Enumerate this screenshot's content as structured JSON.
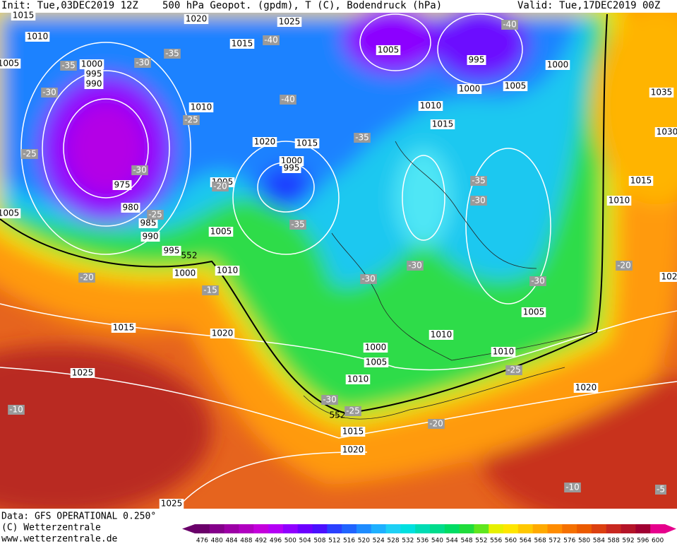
{
  "header": {
    "init": "Init: Tue,03DEC2019 12Z",
    "title": "500 hPa Geopot. (gpdm), T (C), Bodendruck (hPa)",
    "valid": "Valid: Tue,17DEC2019 00Z"
  },
  "footer": {
    "data": "Data: GFS OPERATIONAL 0.250°",
    "copyright": "(C) Wetterzentrale",
    "url": "www.wetterzentrale.de"
  },
  "colorbar": {
    "values": [
      476,
      480,
      484,
      488,
      492,
      496,
      500,
      504,
      508,
      512,
      516,
      520,
      524,
      528,
      532,
      536,
      540,
      544,
      548,
      552,
      556,
      560,
      564,
      568,
      572,
      576,
      580,
      584,
      588,
      592,
      596,
      600
    ],
    "colors": [
      "#6a006a",
      "#84008a",
      "#9c00a6",
      "#b000c0",
      "#c400dc",
      "#b400f5",
      "#9000ff",
      "#6c00ff",
      "#4a10ff",
      "#2a40ff",
      "#2064ff",
      "#1e8cff",
      "#1eb0ff",
      "#1ed0f5",
      "#00e0e0",
      "#00dcb4",
      "#00dc8c",
      "#00dc64",
      "#20dc3c",
      "#60e61e",
      "#e6f000",
      "#ffe600",
      "#ffc800",
      "#ffaa00",
      "#ff8c00",
      "#f57000",
      "#eb5a00",
      "#dc4010",
      "#c82820",
      "#b41428",
      "#a00032",
      "#e6008c"
    ]
  },
  "map": {
    "pressure_labels": [
      1015,
      1010,
      1005,
      1000,
      995,
      990,
      1020,
      1025,
      1015,
      1005,
      995,
      1000,
      1000,
      1005,
      1035,
      1030,
      1010,
      1010,
      1015,
      1020,
      1015,
      1000,
      995,
      975,
      1005,
      1015,
      1010,
      980,
      985,
      990,
      1005,
      995,
      1000,
      1010,
      1005,
      1015,
      1020,
      1010,
      1010,
      1000,
      1005,
      1025,
      1010,
      1020,
      1015,
      1020,
      1025,
      1005,
      102
    ],
    "temperature_labels": [
      -40,
      -40,
      -35,
      -35,
      -30,
      -30,
      -40,
      -25,
      -35,
      -25,
      -30,
      -20,
      -35,
      -30,
      -25,
      -35,
      -30,
      -30,
      -30,
      -20,
      -20,
      -15,
      -25,
      -30,
      -25,
      -20,
      -10,
      -10,
      -5
    ],
    "height_labels": [
      552,
      552
    ]
  }
}
